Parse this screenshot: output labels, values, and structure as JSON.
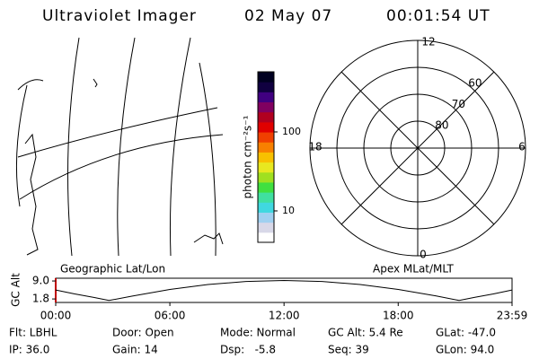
{
  "header": {
    "title": "Ultraviolet Imager",
    "date": "02 May 07",
    "time": "00:01:54 UT"
  },
  "geo_panel": {
    "label": "Geographic Lat/Lon"
  },
  "colorbar": {
    "label": "photon cm⁻²s⁻¹",
    "log": true,
    "lim": [
      4,
      577
    ],
    "ticks": [
      10,
      100
    ],
    "colors": [
      "#ffffff",
      "#d8d8e8",
      "#a0d0f0",
      "#40d8e0",
      "#40e0a0",
      "#40e040",
      "#a0e020",
      "#e8e820",
      "#f8c000",
      "#f88000",
      "#f04000",
      "#e00000",
      "#b00020",
      "#800060",
      "#400080",
      "#100040",
      "#000020"
    ]
  },
  "polar": {
    "label": "Apex MLat/MLT",
    "rlim": [
      90,
      50
    ],
    "rticks": [
      80,
      70,
      60
    ],
    "mlt_labels": [
      "12",
      "6",
      "0",
      "18"
    ]
  },
  "gc_alt": {
    "type": "line",
    "ylabel": "GC Alt",
    "color": "#000000",
    "ylim": [
      0.4,
      10.1
    ],
    "yticks": [
      {
        "value": 9,
        "label": "9.0"
      },
      1.8
    ],
    "xlim": [
      0,
      23.983
    ],
    "xticks": [
      {
        "value": 0,
        "label": "00:00"
      },
      {
        "value": 6,
        "label": "06:00"
      },
      {
        "value": 12,
        "label": "12:00"
      },
      {
        "value": 18,
        "label": "18:00"
      },
      {
        "value": 23.983,
        "label": "23:59"
      }
    ],
    "x": [
      0,
      1,
      2,
      2.8,
      4,
      6,
      8,
      10,
      12,
      14,
      16,
      18,
      20,
      21.2,
      22,
      23,
      23.983
    ],
    "values": [
      5.4,
      3.8,
      2.4,
      1.2,
      2.9,
      5.6,
      7.6,
      8.8,
      9.2,
      8.8,
      7.6,
      5.6,
      3.0,
      1.2,
      2.4,
      3.8,
      5.4
    ]
  },
  "status": [
    [
      "Flt: LBHL",
      "Door: Open",
      "Mode: Normal",
      "GC Alt: 5.4 Re",
      "GLat: -47.0"
    ],
    [
      "IP: 36.0",
      "Gain: 14",
      "Dsp:   -5.8",
      "Seq: 39",
      "GLon: 94.0"
    ]
  ]
}
